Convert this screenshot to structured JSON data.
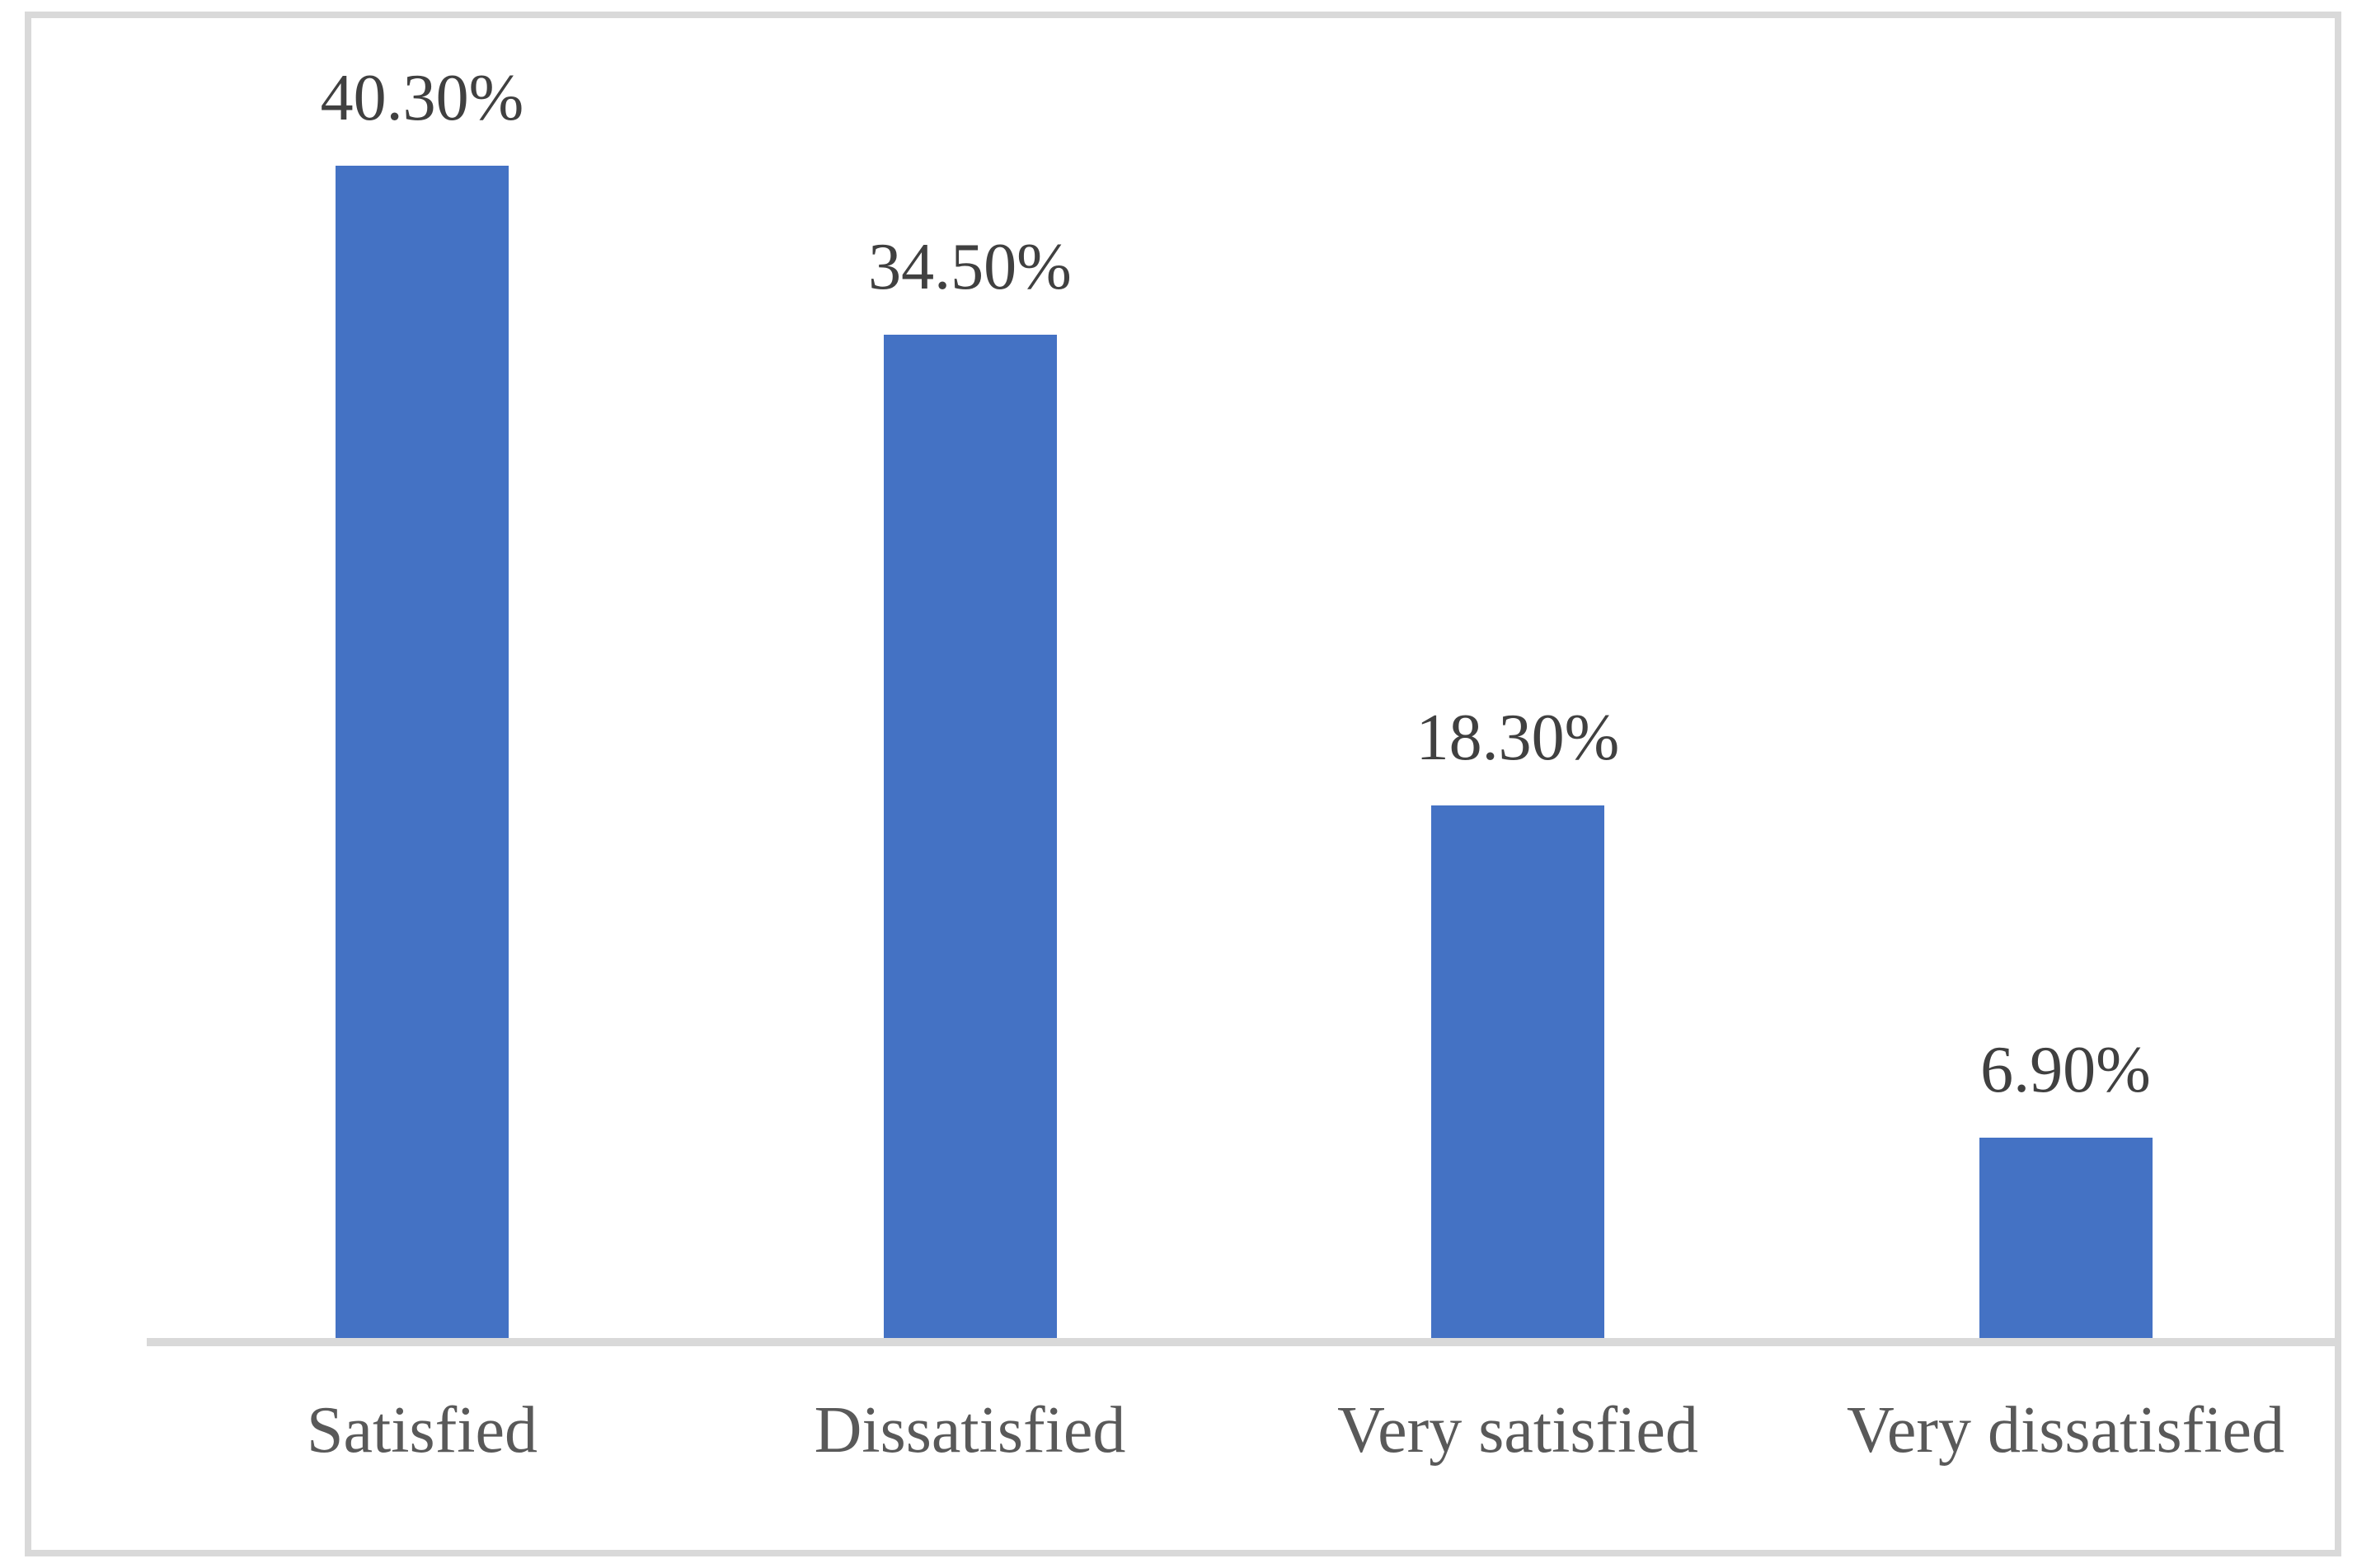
{
  "chart_data": {
    "type": "bar",
    "title": "",
    "xlabel": "",
    "ylabel": "",
    "categories": [
      "Satisfied",
      "Dissatisfied",
      "Very satisfied",
      "Very dissatisfied"
    ],
    "values": [
      40.3,
      34.5,
      18.3,
      6.9
    ],
    "value_labels": [
      "40.30%",
      "34.50%",
      "18.30%",
      "6.90%"
    ],
    "unit": "%",
    "ylim": [
      0,
      45
    ],
    "grid": false,
    "legend": false,
    "y_axis_visible": false,
    "data_labels_position": "above-bar",
    "colors": {
      "bar": "#4472C4",
      "value_label": "#404040",
      "category_label": "#595959",
      "axis_line": "#D9D9D9",
      "chart_border": "#D9D9D9",
      "background": "#FFFFFF"
    }
  }
}
